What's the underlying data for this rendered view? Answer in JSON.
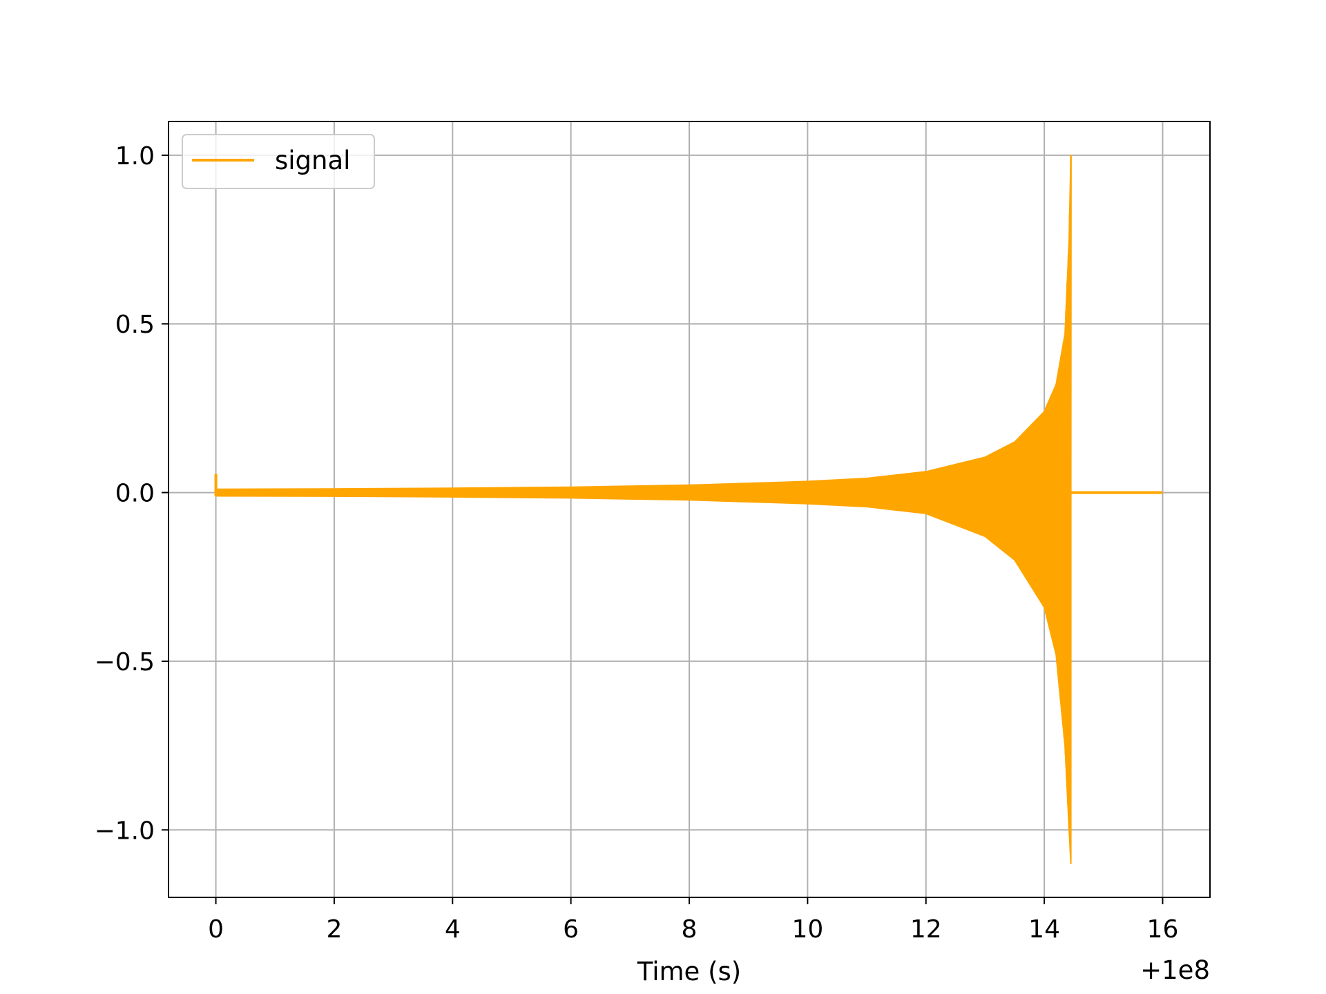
{
  "chart_data": {
    "type": "line",
    "title": "",
    "xlabel": "Time (s)",
    "ylabel": "",
    "x_offset_label": "+1e8",
    "xlim": [
      -0.8,
      16.8
    ],
    "ylim": [
      -1.2,
      1.1
    ],
    "grid": true,
    "legend_placement": "top-left",
    "xticks": [
      0,
      2,
      4,
      6,
      8,
      10,
      12,
      14,
      16
    ],
    "xtick_labels": [
      "0",
      "2",
      "4",
      "6",
      "8",
      "10",
      "12",
      "14",
      "16"
    ],
    "yticks": [
      -1.0,
      -0.5,
      0.0,
      0.5,
      1.0
    ],
    "ytick_labels": [
      "−1.0",
      "−0.5",
      "0.0",
      "0.5",
      "1.0"
    ],
    "series": [
      {
        "name": "signal",
        "color": "#ffa500",
        "description": "chirp waveform whose oscillation amplitude grows from about 0.01 to 1.0 before cutting off, then flat zero",
        "envelope_upper": {
          "x": [
            0.0,
            2.0,
            4.0,
            6.0,
            8.0,
            10.0,
            11.0,
            12.0,
            13.0,
            13.5,
            14.0,
            14.2,
            14.35,
            14.42,
            14.45
          ],
          "y": [
            0.01,
            0.011,
            0.013,
            0.016,
            0.022,
            0.033,
            0.042,
            0.062,
            0.105,
            0.15,
            0.24,
            0.32,
            0.47,
            0.75,
            1.0
          ]
        },
        "envelope_lower": {
          "x": [
            0.0,
            2.0,
            4.0,
            6.0,
            8.0,
            10.0,
            11.0,
            12.0,
            13.0,
            13.5,
            14.0,
            14.2,
            14.35,
            14.42,
            14.45
          ],
          "y": [
            -0.01,
            -0.011,
            -0.013,
            -0.016,
            -0.022,
            -0.033,
            -0.042,
            -0.062,
            -0.13,
            -0.2,
            -0.34,
            -0.48,
            -0.75,
            -1.0,
            -1.1
          ]
        },
        "start_spike": {
          "x": 0.0,
          "y": 0.055
        },
        "cutoff_time": 14.45,
        "flat_segment": {
          "x": [
            14.5,
            16.0
          ],
          "y": [
            0.0,
            0.0
          ]
        }
      }
    ]
  }
}
